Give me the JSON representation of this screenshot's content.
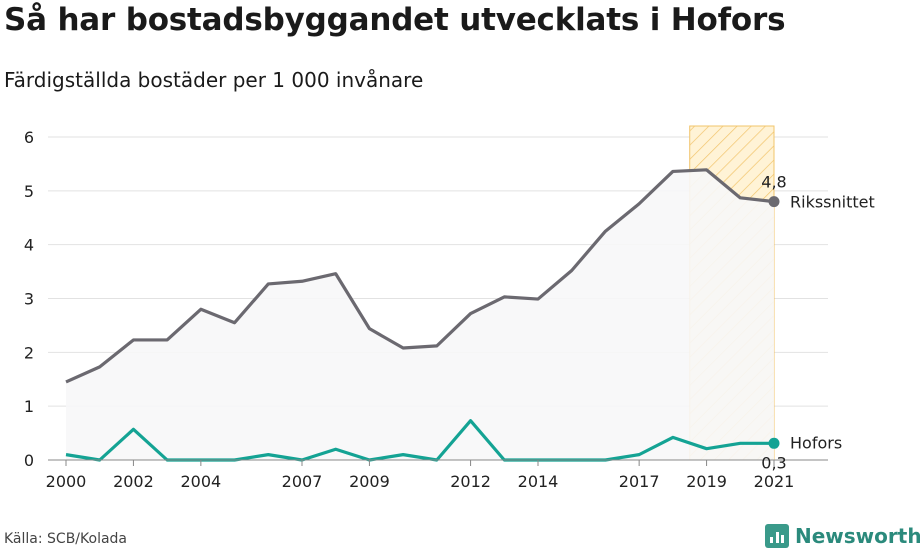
{
  "title": "Så har bostadsbyggandet utvecklats i Hofors",
  "subtitle": "Färdigställda bostäder per 1 000 invånare",
  "source": "Källa: SCB/Kolada",
  "brand": {
    "name": "Newsworthy",
    "icon": "newsworthy-logo-icon"
  },
  "colors": {
    "national": "#6b6970",
    "hofors": "#14a394",
    "highlight_fill": "#fff3d6",
    "highlight_stroke": "#f2c46b",
    "area": "#f7f7f8"
  },
  "chart_data": {
    "type": "line",
    "title": "Så har bostadsbyggandet utvecklats i Hofors",
    "subtitle": "Färdigställda bostäder per 1 000 invånare",
    "x": [
      2000,
      2001,
      2002,
      2003,
      2004,
      2005,
      2006,
      2007,
      2008,
      2009,
      2010,
      2011,
      2012,
      2013,
      2014,
      2015,
      2016,
      2017,
      2018,
      2019,
      2020,
      2021
    ],
    "x_tick_labels": [
      "2000",
      "2002",
      "2004",
      "2007",
      "2009",
      "2012",
      "2014",
      "2017",
      "2019",
      "2021"
    ],
    "ylim": [
      0,
      6
    ],
    "y_ticks": [
      0,
      1,
      2,
      3,
      4,
      5,
      6
    ],
    "grid": "horizontal",
    "highlight_range": [
      2018.5,
      2021
    ],
    "series": [
      {
        "name": "Rikssnittet",
        "values": [
          1.45,
          1.73,
          2.23,
          2.23,
          2.8,
          2.55,
          3.27,
          3.32,
          3.46,
          2.44,
          2.08,
          2.12,
          2.72,
          3.03,
          2.99,
          3.52,
          4.25,
          4.76,
          5.36,
          5.39,
          4.87,
          4.8
        ],
        "end_label": "4,8"
      },
      {
        "name": "Hofors",
        "values": [
          0.1,
          0.0,
          0.57,
          0.0,
          0.0,
          0.0,
          0.1,
          0.0,
          0.2,
          0.0,
          0.1,
          0.0,
          0.73,
          0.0,
          0.0,
          0.0,
          0.0,
          0.1,
          0.42,
          0.21,
          0.31,
          0.31
        ],
        "end_label": "0,3"
      }
    ]
  }
}
